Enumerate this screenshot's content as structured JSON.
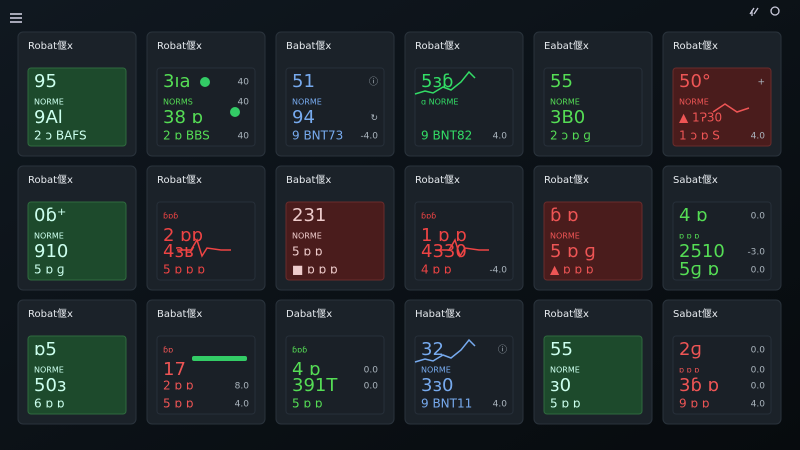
{
  "cards": [
    {
      "title": "Robat偃x",
      "panel": "green",
      "accent": "#cfe",
      "lines": [
        {
          "t": "95",
          "s": "lg"
        },
        {
          "t": "NORME",
          "s": "sm"
        },
        {
          "t": "9Al",
          "s": "lg"
        },
        {
          "t": "2 ɔ BAFS",
          "s": "md"
        }
      ]
    },
    {
      "title": "Robat偃x",
      "panel": "dark",
      "accent": "#5d5",
      "marker": "dot",
      "lines": [
        {
          "t": "3ıa",
          "s": "lg",
          "r": "40"
        },
        {
          "t": "NORMS",
          "s": "sm",
          "r": "40"
        },
        {
          "t": "38 ɒ",
          "s": "lg"
        },
        {
          "t": "2 ɒ BBS",
          "s": "md",
          "r": "40"
        }
      ]
    },
    {
      "title": "Babat偃x",
      "panel": "dark",
      "accent": "#7ae",
      "lines": [
        {
          "t": "51",
          "s": "lg",
          "r": "ⓘ"
        },
        {
          "t": "NORME",
          "s": "sm"
        },
        {
          "t": "94",
          "s": "lg",
          "r": "↻"
        },
        {
          "t": "9 BNT73",
          "s": "md",
          "r": "-4.0"
        }
      ]
    },
    {
      "title": "Robat偃x",
      "panel": "dark",
      "accent": "#3d6",
      "spark": "up",
      "lines": [
        {
          "t": "5ɜɓ",
          "s": "lg"
        },
        {
          "t": "ɑ NORME",
          "s": "sm"
        },
        {
          "t": "",
          "s": "lg"
        },
        {
          "t": "9 BNT82",
          "s": "md",
          "r": "4.0"
        }
      ]
    },
    {
      "title": "Eabat偃x",
      "panel": "dark",
      "accent": "#5d5",
      "lines": [
        {
          "t": "55",
          "s": "lg"
        },
        {
          "t": "NORME",
          "s": "sm"
        },
        {
          "t": "3B0",
          "s": "lg"
        },
        {
          "t": "2 ɔ ɒ ɡ",
          "s": "md"
        }
      ]
    },
    {
      "title": "Robat偃x",
      "panel": "red",
      "accent": "#e55",
      "spark": "alert",
      "lines": [
        {
          "t": "50°",
          "s": "lg",
          "r": "+"
        },
        {
          "t": "NORME",
          "s": "sm"
        },
        {
          "t": "▲ 1Ɂ30",
          "s": "md"
        },
        {
          "t": "1 ɔ ɒ Ѕ",
          "s": "md",
          "r": "4.0"
        }
      ]
    },
    {
      "title": "Robat偃x",
      "panel": "green",
      "accent": "#cfe",
      "lines": [
        {
          "t": "0ɓ⁺",
          "s": "lg"
        },
        {
          "t": "NORME",
          "s": "sm"
        },
        {
          "t": "910",
          "s": "lg"
        },
        {
          "t": "5 ɒ ɡ",
          "s": "md"
        }
      ]
    },
    {
      "title": "Robat偃x",
      "panel": "dark",
      "accent": "#e44",
      "spark": "pulse",
      "lines": [
        {
          "t": "ɓɒɓ",
          "s": "sm"
        },
        {
          "t": "2 ɒɒ",
          "s": "lg"
        },
        {
          "t": "4ɜʁ",
          "s": "lg"
        },
        {
          "t": "5 ɒ ɒ ɒ",
          "s": "md"
        }
      ]
    },
    {
      "title": "Babat偃x",
      "panel": "red",
      "accent": "#ecc",
      "lines": [
        {
          "t": "231",
          "s": "lg"
        },
        {
          "t": "NORME",
          "s": "sm"
        },
        {
          "t": "5 ɒ ɒ",
          "s": "md"
        },
        {
          "t": "■ ɒ ɒ ɒ",
          "s": "md"
        }
      ]
    },
    {
      "title": "Robat偃x",
      "panel": "dark",
      "accent": "#e44",
      "spark": "pulse",
      "lines": [
        {
          "t": "ɓɒɓ",
          "s": "sm"
        },
        {
          "t": "1 ɒ ɒ",
          "s": "lg"
        },
        {
          "t": "4330",
          "s": "lg"
        },
        {
          "t": "4 ɒ ɒ",
          "s": "md",
          "r": "-4.0"
        }
      ]
    },
    {
      "title": "Robat偃x",
      "panel": "red",
      "accent": "#e55",
      "lines": [
        {
          "t": "ɓ ɒ",
          "s": "lg"
        },
        {
          "t": "NORME",
          "s": "sm"
        },
        {
          "t": "5 ɒ ɡ",
          "s": "lg"
        },
        {
          "t": "▲ ɒ ɒ ɒ",
          "s": "md"
        }
      ]
    },
    {
      "title": "Sabat偃x",
      "panel": "dark",
      "accent": "#5d5",
      "lines": [
        {
          "t": "4 ɒ",
          "s": "lg",
          "r": "0.0"
        },
        {
          "t": "ɒ ɒ ɒ",
          "s": "sm"
        },
        {
          "t": "2510",
          "s": "lg",
          "r": "-3.0"
        },
        {
          "t": "5ɡ ɒ",
          "s": "lg",
          "r": "0.0"
        }
      ]
    },
    {
      "title": "Robat偃x",
      "panel": "green",
      "accent": "#cfe",
      "lines": [
        {
          "t": "ɒ5",
          "s": "lg"
        },
        {
          "t": "NORME",
          "s": "sm"
        },
        {
          "t": "50ɜ",
          "s": "lg"
        },
        {
          "t": "6 ɒ ɒ",
          "s": "md"
        }
      ]
    },
    {
      "title": "Babat偃x",
      "panel": "dark",
      "accent": "#e55",
      "spark": "bar",
      "lines": [
        {
          "t": "ɓɒ",
          "s": "sm"
        },
        {
          "t": "17",
          "s": "lg"
        },
        {
          "t": "2 ɒ ɒ",
          "s": "md",
          "r": "8.0"
        },
        {
          "t": "5 ɒ ɒ",
          "s": "md",
          "r": "4.0"
        }
      ]
    },
    {
      "title": "Dabat偃x",
      "panel": "dark",
      "accent": "#5d5",
      "lines": [
        {
          "t": "ɓɒɓ",
          "s": "sm"
        },
        {
          "t": "4 ɒ",
          "s": "lg",
          "r": "0.0"
        },
        {
          "t": "391T",
          "s": "lg",
          "r": "0.0"
        },
        {
          "t": "5 ɒ ɒ",
          "s": "md"
        }
      ]
    },
    {
      "title": "Habat偃x",
      "panel": "dark",
      "accent": "#7ae",
      "spark": "up",
      "lines": [
        {
          "t": "32",
          "s": "lg",
          "r": "ⓘ"
        },
        {
          "t": "NORME",
          "s": "sm"
        },
        {
          "t": "3ɜ0",
          "s": "lg"
        },
        {
          "t": "9 BNT11",
          "s": "md",
          "r": "4.0"
        }
      ]
    },
    {
      "title": "Robat偃x",
      "panel": "green",
      "accent": "#cfe",
      "lines": [
        {
          "t": "55",
          "s": "lg"
        },
        {
          "t": "NORME",
          "s": "sm"
        },
        {
          "t": "ɜ0",
          "s": "lg"
        },
        {
          "t": "5 ɒ ɒ",
          "s": "md"
        }
      ]
    },
    {
      "title": "Sabat偃x",
      "panel": "dark",
      "accent": "#e55",
      "lines": [
        {
          "t": "2ɡ",
          "s": "lg",
          "r": "0.0"
        },
        {
          "t": "ɒ ɒ ɒ",
          "s": "sm",
          "r": "0.0"
        },
        {
          "t": "3ɓ ɒ",
          "s": "lg",
          "r": "0.0"
        },
        {
          "t": "9 ɒ ɒ",
          "s": "md",
          "r": "4.0"
        }
      ]
    }
  ]
}
